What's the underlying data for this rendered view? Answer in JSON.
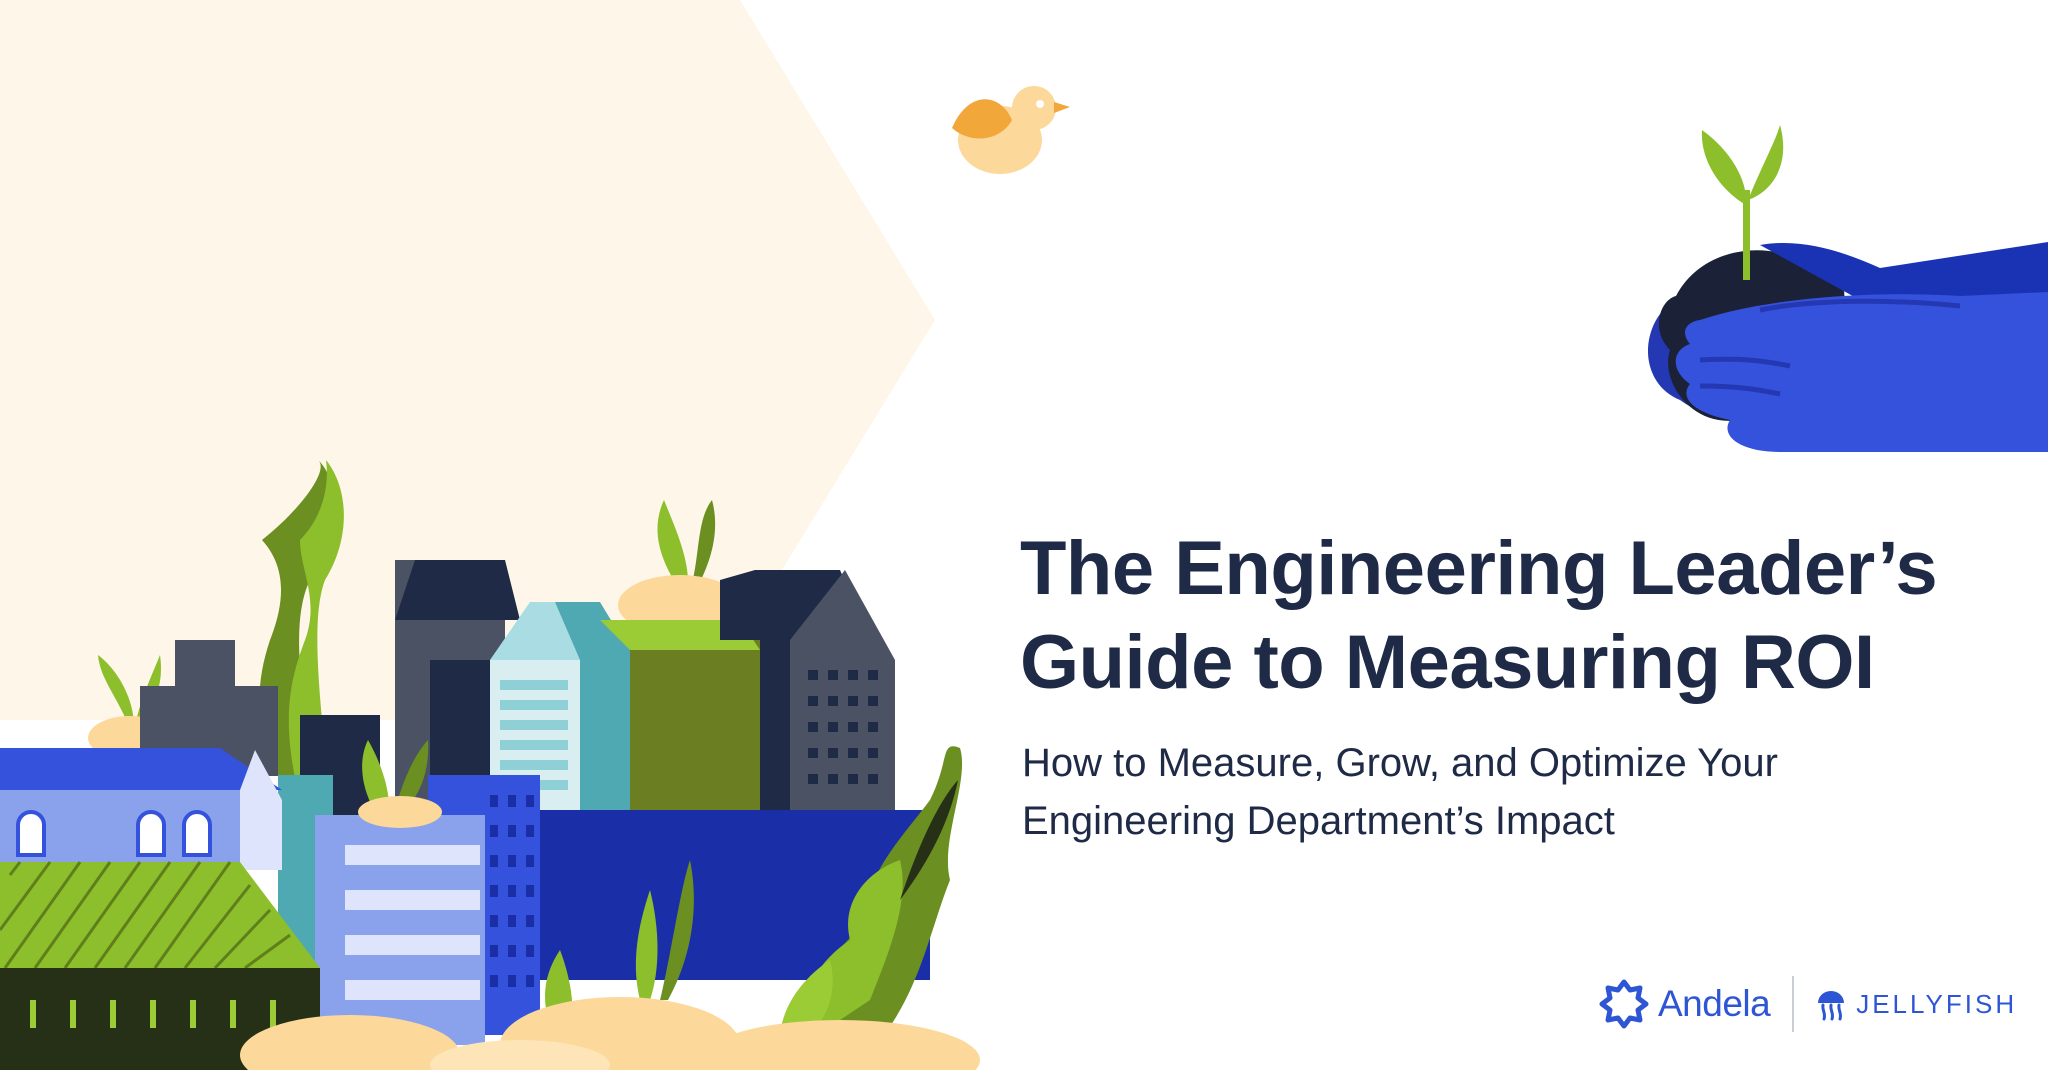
{
  "banner": {
    "title_line1": "The Engineering Leader’s",
    "title_line2": "Guide to Measuring ROI",
    "subtitle_line1": "How to Measure, Grow, and Optimize Your",
    "subtitle_line2": "Engineering Department’s Impact"
  },
  "logos": {
    "andela": "Andela",
    "jellyfish": "JELLYFISH"
  },
  "colors": {
    "title": "#1e2a46",
    "brand_blue": "#2e55d4",
    "cream_background": "#fef6e8",
    "leaf_green": "#8cbf2b",
    "dark_navy": "#1e2a46"
  },
  "illustration": {
    "items": [
      "city-buildings-illustration",
      "bird-illustration",
      "hand-holding-seedling-illustration",
      "plants-illustration",
      "sand-mounds-illustration"
    ]
  }
}
